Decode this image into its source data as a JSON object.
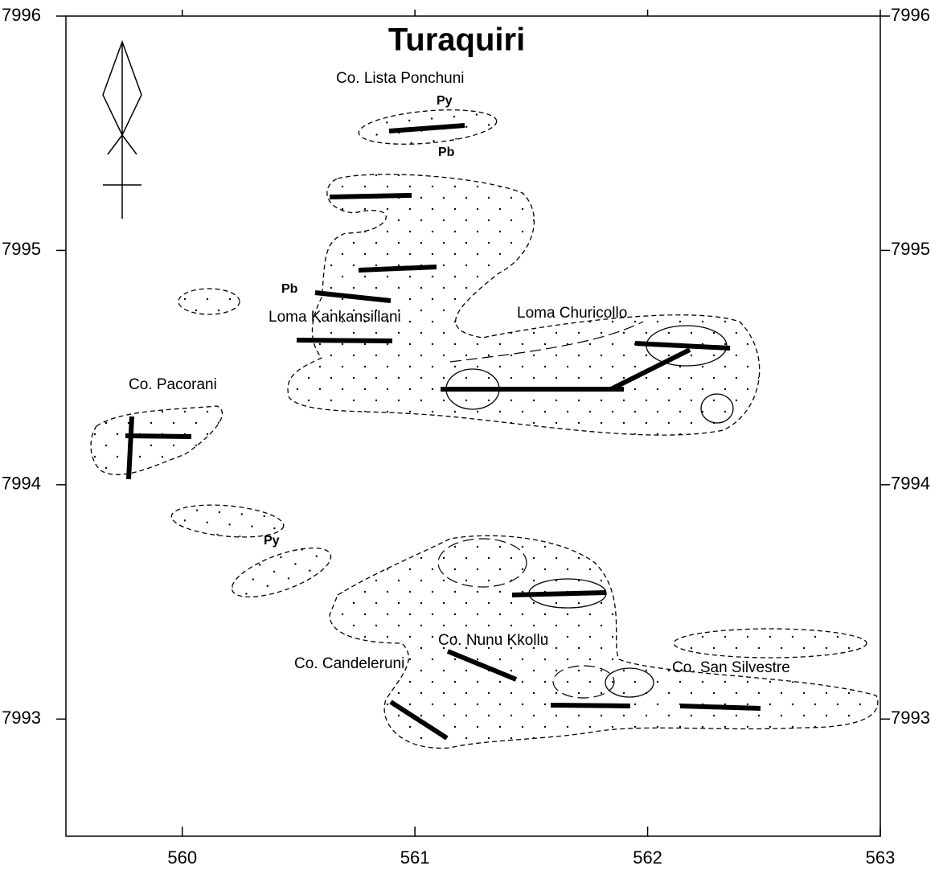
{
  "map": {
    "title": "Turaquiri",
    "xlim": [
      559.5,
      563
    ],
    "ylim": [
      7992.5,
      7996
    ],
    "xticks": [
      560,
      561,
      562,
      563
    ],
    "yticks": [
      7993,
      7994,
      7995,
      7996
    ],
    "labels": [
      "Co. Lista Ponchuni",
      "Py",
      "Pb",
      "Pb",
      "Loma Kankansillani",
      "Loma Churicollo",
      "Co. Pacorani",
      "Py",
      "Co. Nunu Kkollu",
      "Co. Candeleruni",
      "Co. San Silvestre"
    ]
  }
}
